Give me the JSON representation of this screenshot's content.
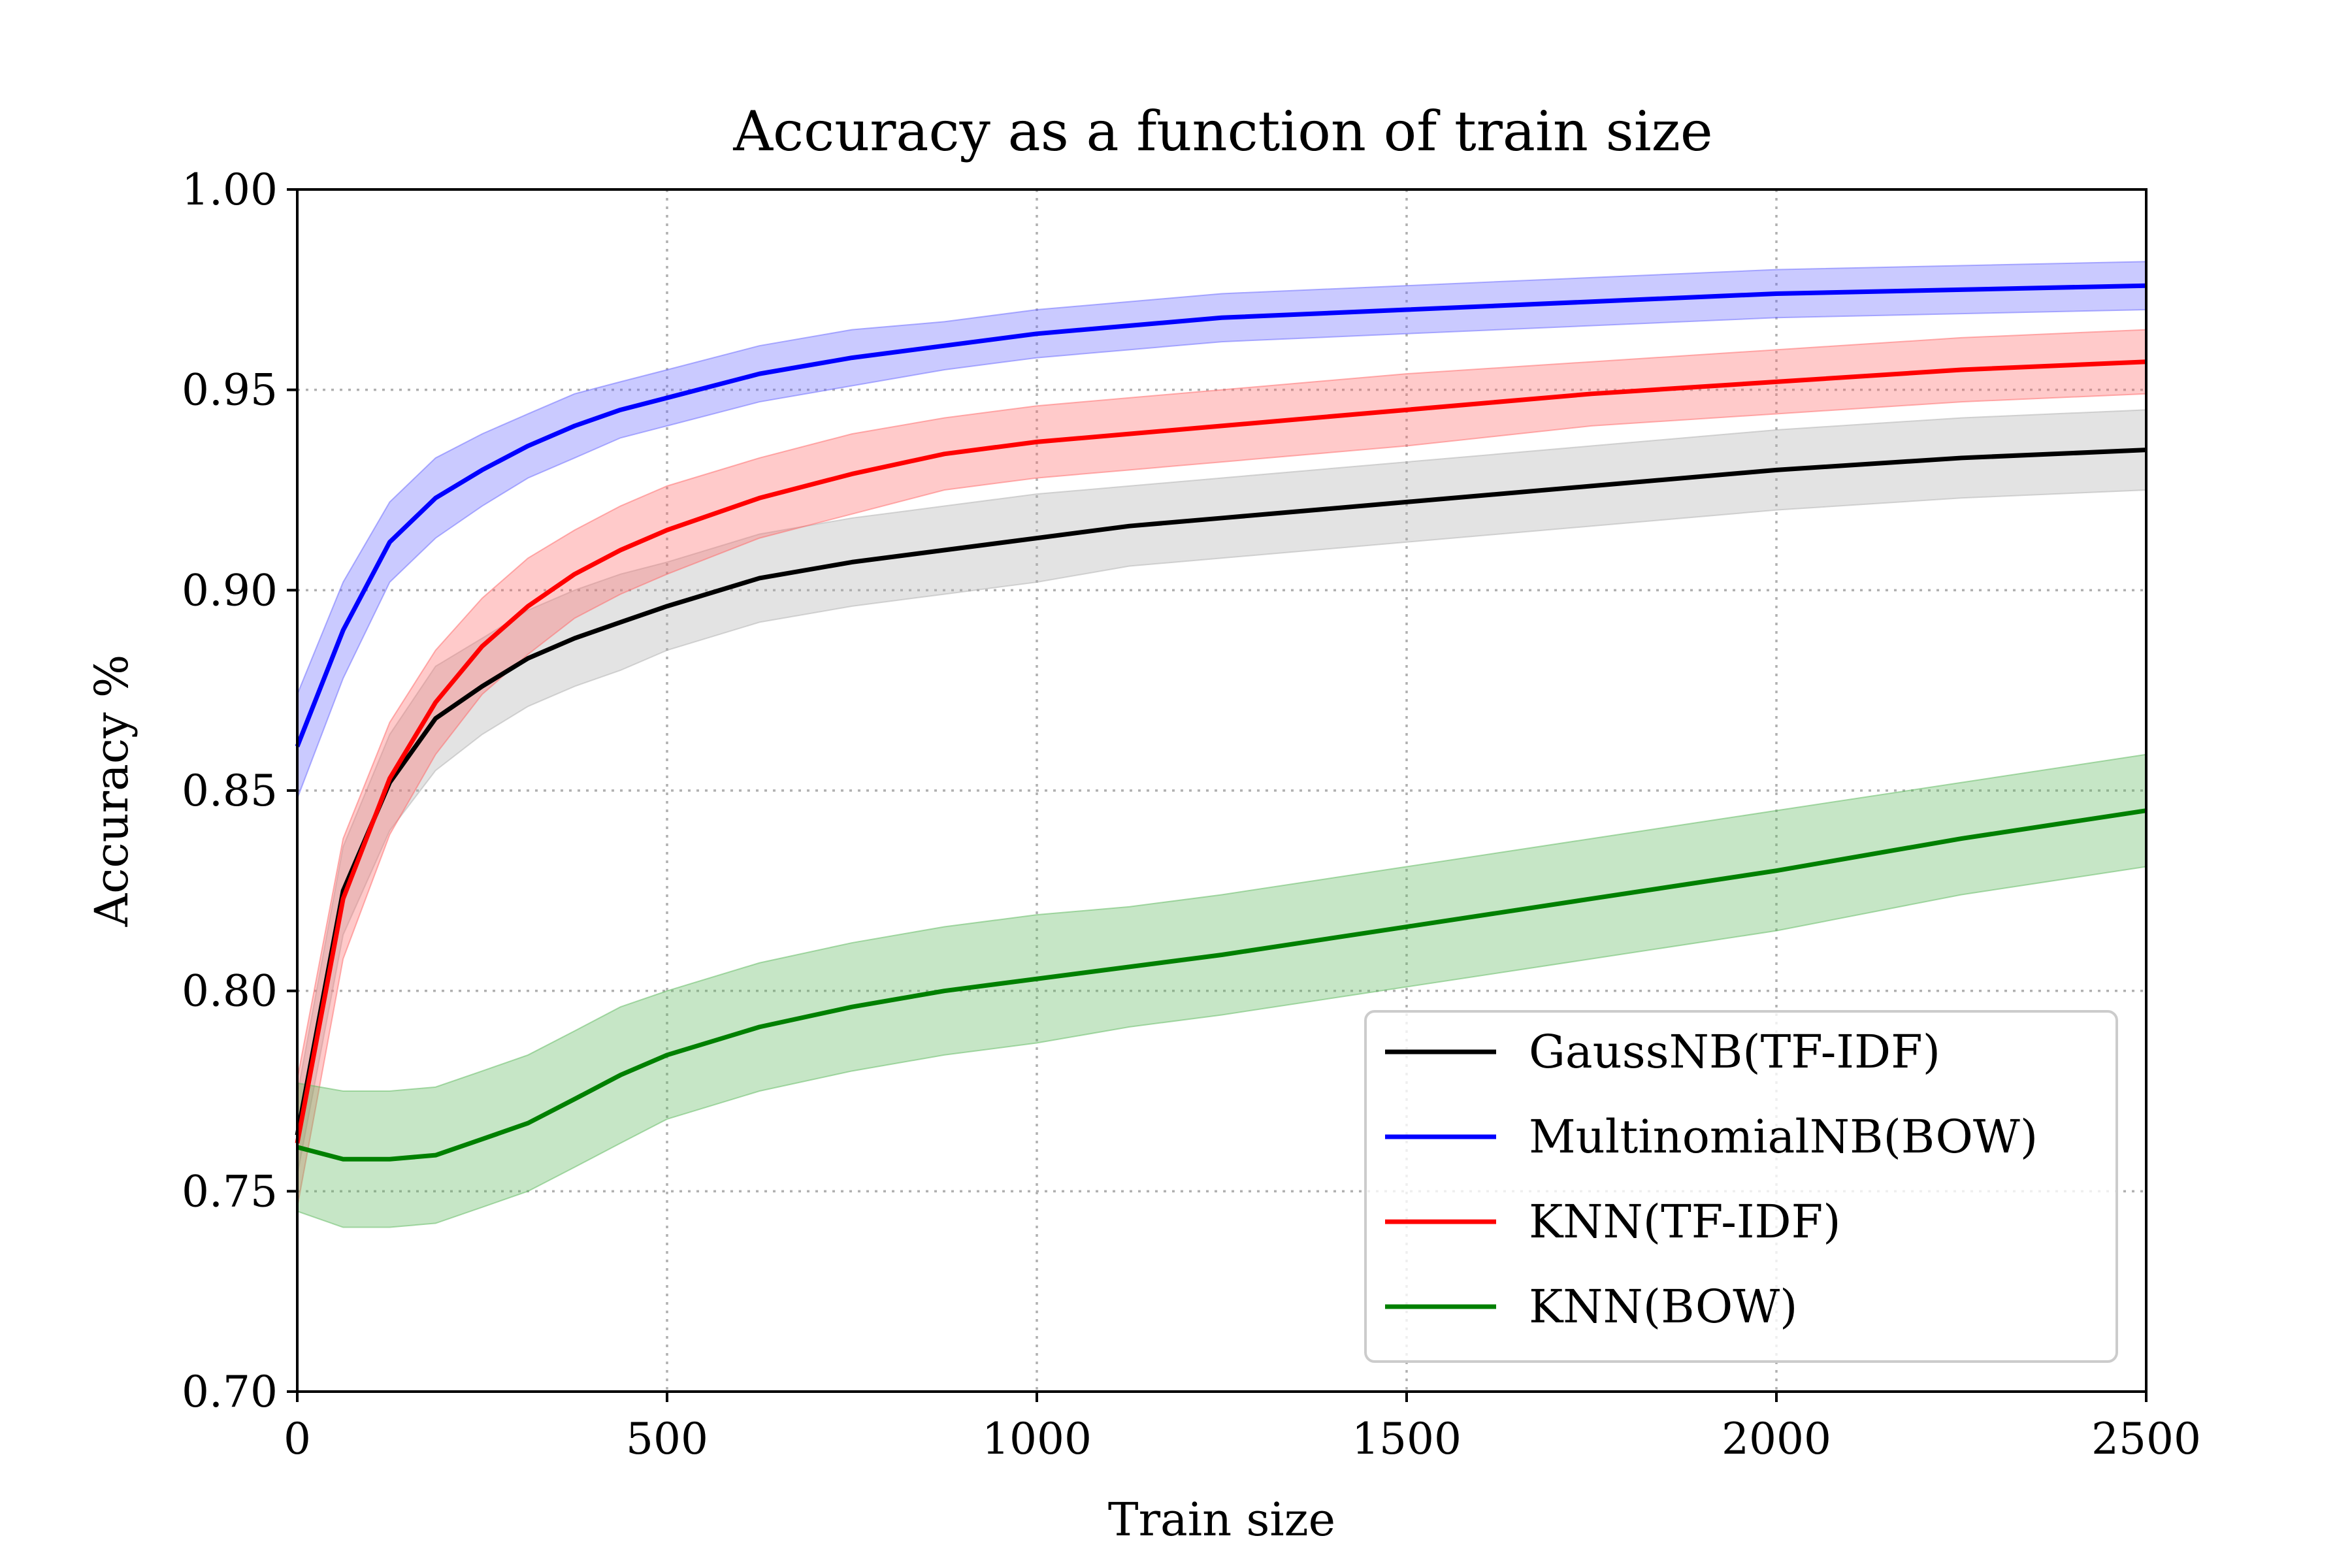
{
  "chart_data": {
    "type": "line",
    "title": "Accuracy as a function of train size",
    "xlabel": "Train size",
    "ylabel": "Accuracy %",
    "xlim": [
      0,
      2500
    ],
    "ylim": [
      0.7,
      1.0
    ],
    "xticks": [
      "0",
      "500",
      "1000",
      "1500",
      "2000",
      "2500"
    ],
    "yticks": [
      "0.70",
      "0.75",
      "0.80",
      "0.85",
      "0.90",
      "0.95",
      "1.00"
    ],
    "grid": true,
    "legend_position": "lower-right",
    "shaded_band": "variability band around each series",
    "series": [
      {
        "name": "GaussNB(TF-IDF)",
        "color": "#000000",
        "band_color": "#b0b0b0",
        "x": [
          0,
          62,
          125,
          187,
          250,
          312,
          375,
          437,
          500,
          625,
          750,
          875,
          1000,
          1125,
          1250,
          1500,
          1750,
          2000,
          2250,
          2500
        ],
        "y": [
          0.764,
          0.825,
          0.852,
          0.868,
          0.876,
          0.883,
          0.888,
          0.892,
          0.896,
          0.903,
          0.907,
          0.91,
          0.913,
          0.916,
          0.918,
          0.922,
          0.926,
          0.93,
          0.933,
          0.935
        ],
        "band": [
          0.01,
          0.011,
          0.012,
          0.013,
          0.012,
          0.012,
          0.012,
          0.012,
          0.011,
          0.011,
          0.011,
          0.011,
          0.011,
          0.01,
          0.01,
          0.01,
          0.01,
          0.01,
          0.01,
          0.01
        ]
      },
      {
        "name": "MultinomialNB(BOW)",
        "color": "#0000ff",
        "band_color": "#6666ff",
        "x": [
          0,
          62,
          125,
          187,
          250,
          312,
          375,
          437,
          500,
          625,
          750,
          875,
          1000,
          1125,
          1250,
          1500,
          1750,
          2000,
          2250,
          2500
        ],
        "y": [
          0.861,
          0.89,
          0.912,
          0.923,
          0.93,
          0.936,
          0.941,
          0.945,
          0.948,
          0.954,
          0.958,
          0.961,
          0.964,
          0.966,
          0.968,
          0.97,
          0.972,
          0.974,
          0.975,
          0.976
        ],
        "band": [
          0.013,
          0.012,
          0.01,
          0.01,
          0.009,
          0.008,
          0.008,
          0.007,
          0.007,
          0.007,
          0.007,
          0.006,
          0.006,
          0.006,
          0.006,
          0.006,
          0.006,
          0.006,
          0.006,
          0.006
        ]
      },
      {
        "name": "KNN(TF-IDF)",
        "color": "#ff0000",
        "band_color": "#ff6666",
        "x": [
          0,
          62,
          125,
          187,
          250,
          312,
          375,
          437,
          500,
          625,
          750,
          875,
          1000,
          1125,
          1250,
          1500,
          1750,
          2000,
          2250,
          2500
        ],
        "y": [
          0.762,
          0.823,
          0.853,
          0.872,
          0.886,
          0.896,
          0.904,
          0.91,
          0.915,
          0.923,
          0.929,
          0.934,
          0.937,
          0.939,
          0.941,
          0.945,
          0.949,
          0.952,
          0.955,
          0.957
        ],
        "band": [
          0.016,
          0.015,
          0.014,
          0.013,
          0.012,
          0.012,
          0.011,
          0.011,
          0.011,
          0.01,
          0.01,
          0.009,
          0.009,
          0.009,
          0.009,
          0.009,
          0.008,
          0.008,
          0.008,
          0.008
        ]
      },
      {
        "name": "KNN(BOW)",
        "color": "#008000",
        "band_color": "#5cb85c",
        "x": [
          0,
          62,
          125,
          187,
          250,
          312,
          375,
          437,
          500,
          625,
          750,
          875,
          1000,
          1125,
          1250,
          1500,
          1750,
          2000,
          2250,
          2500
        ],
        "y": [
          0.761,
          0.758,
          0.758,
          0.759,
          0.763,
          0.767,
          0.773,
          0.779,
          0.784,
          0.791,
          0.796,
          0.8,
          0.803,
          0.806,
          0.809,
          0.816,
          0.823,
          0.83,
          0.838,
          0.845
        ],
        "band": [
          0.016,
          0.017,
          0.017,
          0.017,
          0.017,
          0.017,
          0.017,
          0.017,
          0.016,
          0.016,
          0.016,
          0.016,
          0.016,
          0.015,
          0.015,
          0.015,
          0.015,
          0.015,
          0.014,
          0.014
        ]
      }
    ]
  }
}
